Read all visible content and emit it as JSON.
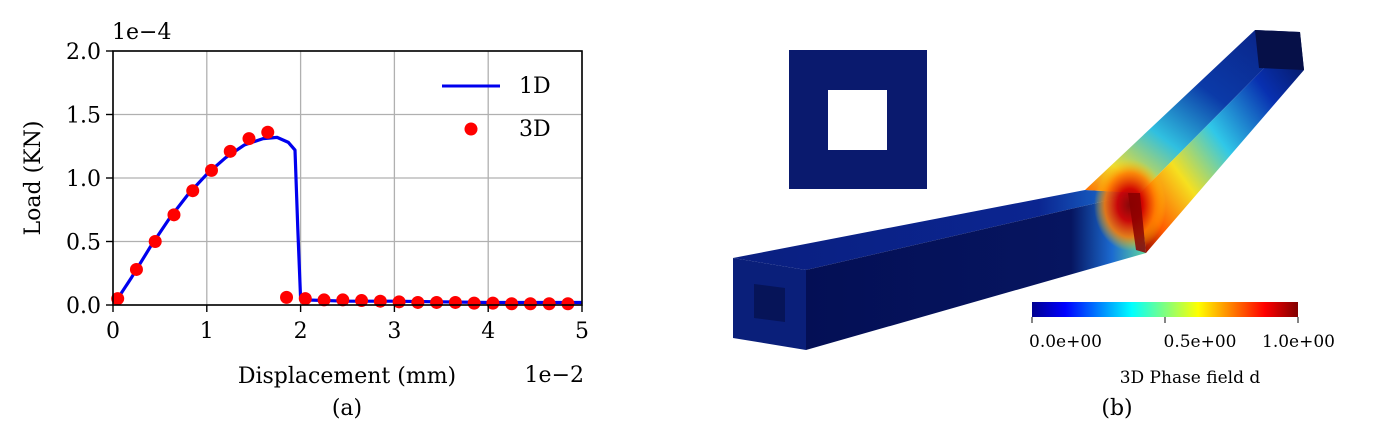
{
  "panel_a": {
    "caption": "(a)",
    "chart_data": {
      "type": "line",
      "xlabel": "Displacement (mm)",
      "ylabel": "Load (KN)",
      "x_scale_label": "1e−2",
      "y_scale_label": "1e−4",
      "xlim": [
        0,
        5
      ],
      "ylim": [
        0,
        2.0
      ],
      "x_ticks": [
        "0",
        "1",
        "2",
        "3",
        "4",
        "5"
      ],
      "y_ticks": [
        "0.0",
        "0.5",
        "1.0",
        "1.5",
        "2.0"
      ],
      "grid": true,
      "legend_position": "top-right",
      "series": [
        {
          "name": "1D",
          "style": "line",
          "color": "#0000ee",
          "x": [
            0.05,
            0.2,
            0.4,
            0.6,
            0.8,
            1.0,
            1.2,
            1.4,
            1.6,
            1.75,
            1.87,
            1.94,
            1.97,
            2.0,
            2.03,
            2.5,
            3.0,
            4.0,
            5.0
          ],
          "y": [
            0.05,
            0.22,
            0.46,
            0.68,
            0.87,
            1.03,
            1.16,
            1.26,
            1.31,
            1.32,
            1.28,
            1.22,
            0.6,
            0.05,
            0.04,
            0.03,
            0.03,
            0.02,
            0.02
          ]
        },
        {
          "name": "3D",
          "style": "markers",
          "color": "#ff0000",
          "x": [
            0.05,
            0.25,
            0.45,
            0.65,
            0.85,
            1.05,
            1.25,
            1.45,
            1.65,
            1.85,
            2.05,
            2.25,
            2.45,
            2.65,
            2.85,
            3.05,
            3.25,
            3.45,
            3.65,
            3.85,
            4.05,
            4.25,
            4.45,
            4.65,
            4.85
          ],
          "y": [
            0.05,
            0.28,
            0.5,
            0.71,
            0.9,
            1.06,
            1.21,
            1.31,
            1.36,
            0.06,
            0.05,
            0.04,
            0.04,
            0.035,
            0.03,
            0.025,
            0.02,
            0.02,
            0.02,
            0.015,
            0.015,
            0.01,
            0.01,
            0.01,
            0.01
          ]
        }
      ]
    }
  },
  "panel_b": {
    "caption": "(b)",
    "colorbar": {
      "title": "3D Phase field d",
      "tick_labels": [
        "0.0e+00",
        "0.5e+00",
        "1.0e+00"
      ],
      "colormap": "jet"
    },
    "colors": {
      "beam": "#0a1f78",
      "beam_dark": "#030d4a",
      "inset_square": "#0a1a6e"
    }
  }
}
